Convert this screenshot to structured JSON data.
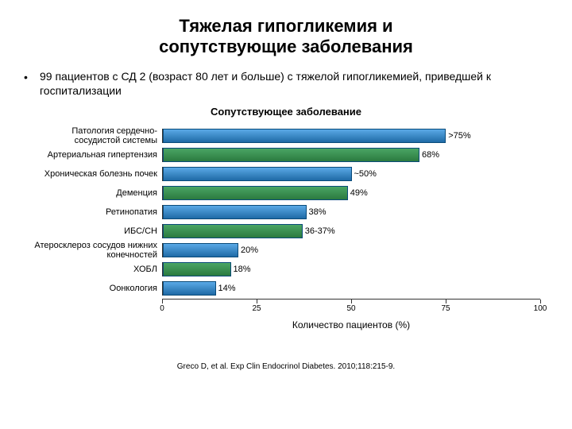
{
  "title_line1": "Тяжелая гипогликемия и",
  "title_line2": "сопутствующие заболевания",
  "bullet_text": "99 пациентов с СД 2 (возраст 80 лет и больше)  с тяжелой гипогликемией, приведшей к госпитализации",
  "subtitle": "Сопутствующее заболевание",
  "chart": {
    "type": "bar-horizontal",
    "xlim": [
      0,
      100
    ],
    "ticks": [
      0,
      25,
      50,
      75,
      100
    ],
    "x_axis_label": "Количество пациентов (%)",
    "bar_border": "#0a4b7a",
    "label_fontsize": 11,
    "value_fontsize": 11,
    "bars": [
      {
        "label": "Патология сердечно-сосудистой системы",
        "value": 75,
        "display": ">75%",
        "fill_top": "#5aa9e6",
        "fill_bottom": "#1f6aa6"
      },
      {
        "label": "Артериальная гипертензия",
        "value": 68,
        "display": "68%",
        "fill_top": "#4aa564",
        "fill_bottom": "#2b7a3f"
      },
      {
        "label": "Хроническая болезнь почек",
        "value": 50,
        "display": "~50%",
        "fill_top": "#5aa9e6",
        "fill_bottom": "#1f6aa6"
      },
      {
        "label": "Деменция",
        "value": 49,
        "display": "49%",
        "fill_top": "#4aa564",
        "fill_bottom": "#2b7a3f"
      },
      {
        "label": "Ретинопатия",
        "value": 38,
        "display": "38%",
        "fill_top": "#5aa9e6",
        "fill_bottom": "#1f6aa6"
      },
      {
        "label": "ИБС/СН",
        "value": 37,
        "display": "36-37%",
        "fill_top": "#4aa564",
        "fill_bottom": "#2b7a3f"
      },
      {
        "label": "Атеросклероз сосудов нижних конечностей",
        "value": 20,
        "display": "20%",
        "fill_top": "#5aa9e6",
        "fill_bottom": "#1f6aa6"
      },
      {
        "label": "ХОБЛ",
        "value": 18,
        "display": "18%",
        "fill_top": "#4aa564",
        "fill_bottom": "#2b7a3f"
      },
      {
        "label": "Оонкология",
        "value": 14,
        "display": "14%",
        "fill_top": "#5aa9e6",
        "fill_bottom": "#1f6aa6"
      }
    ]
  },
  "citation": "Greco D, et al. Exp Clin Endocrinol Diabetes. 2010;118:215-9."
}
